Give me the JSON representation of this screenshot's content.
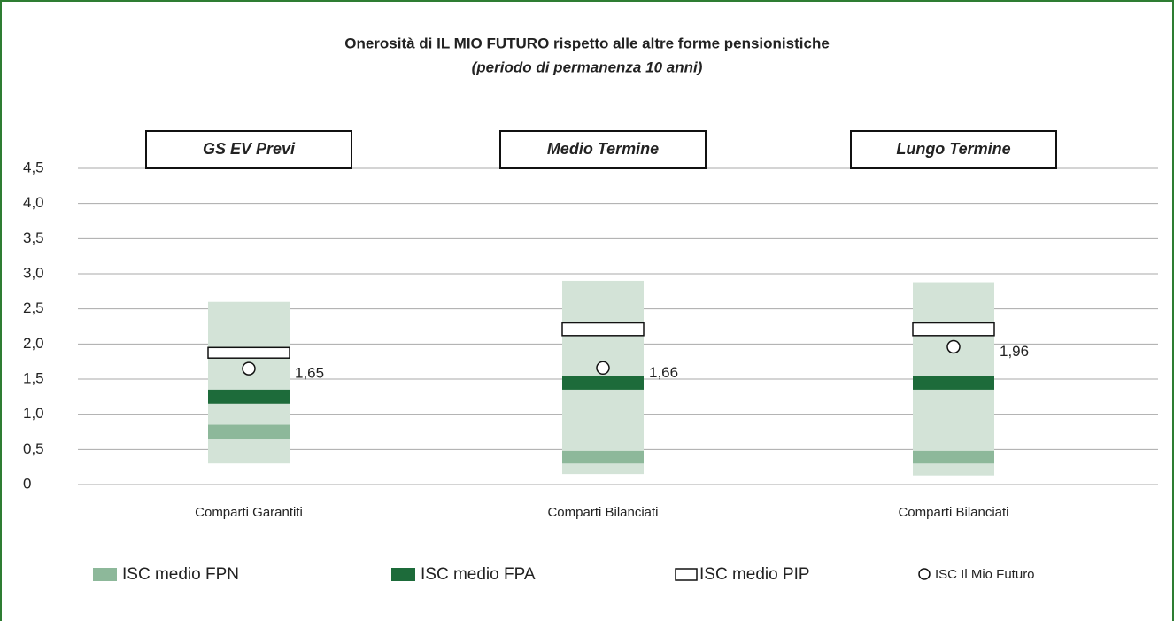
{
  "chart_data": {
    "type": "range",
    "title": "Onerosità di IL MIO FUTURO rispetto alle altre forme pensionistiche",
    "subtitle": "(periodo di permanenza 10 anni)",
    "panel_labels": [
      "GS EV Previ",
      "Medio Termine",
      "Lungo Termine"
    ],
    "categories": [
      "Comparti Garantiti",
      "Comparti Bilanciati",
      "Comparti Bilanciati"
    ],
    "ranges": {
      "color": "#d3e3d7",
      "low": [
        0.3,
        0.15,
        0.13
      ],
      "high": [
        2.6,
        2.9,
        2.88
      ]
    },
    "series": [
      {
        "name": "ISC medio FPN",
        "color": "#8db89a",
        "low": [
          0.65,
          0.3,
          0.3
        ],
        "high": [
          0.85,
          0.48,
          0.48
        ]
      },
      {
        "name": "ISC medio FPA",
        "color": "#1d6b3a",
        "low": [
          1.15,
          1.35,
          1.35
        ],
        "high": [
          1.35,
          1.55,
          1.55
        ]
      },
      {
        "name": "ISC medio PIP",
        "color": "#ffffff",
        "low": [
          1.8,
          2.12,
          2.12
        ],
        "high": [
          1.95,
          2.3,
          2.3
        ]
      }
    ],
    "points": {
      "name": "ISC Il Mio Futuro",
      "values": [
        1.65,
        1.66,
        1.96
      ],
      "value_labels": [
        "1,65",
        "1,66",
        "1,96"
      ]
    },
    "ylim": [
      0,
      4.5
    ],
    "yticks": [
      0,
      {
        "value": 0.5,
        "label": "0,5"
      },
      {
        "value": 1,
        "label": "1,0"
      },
      {
        "value": 1.5,
        "label": "1,5"
      },
      {
        "value": 2,
        "label": "2,0"
      },
      {
        "value": 2.5,
        "label": "2,5"
      },
      {
        "value": 3,
        "label": "3,0"
      },
      {
        "value": 3.5,
        "label": "3,5"
      },
      {
        "value": 4,
        "label": "4,0"
      },
      {
        "value": 4.5,
        "label": "4,5"
      }
    ],
    "grid": true
  }
}
